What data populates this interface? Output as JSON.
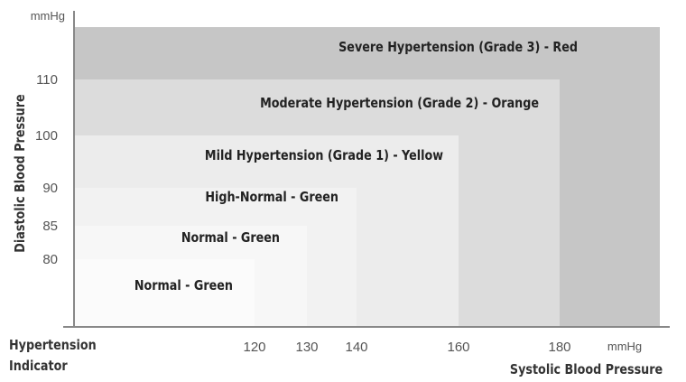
{
  "chart_data": {
    "type": "area",
    "title": "",
    "xlabel": "Systolic Blood Pressure",
    "ylabel": "Diastolic Blood Pressure",
    "x_unit": "mmHg",
    "y_unit": "mmHg",
    "x_ticks": [
      120,
      130,
      140,
      160,
      180
    ],
    "y_ticks": [
      80,
      85,
      90,
      100,
      110
    ],
    "corner_label": [
      "Hypertension",
      "Indicator"
    ],
    "zones": [
      {
        "label": "Severe Hypertension (Grade 3) - Red",
        "color": "#c6c6c6"
      },
      {
        "label": "Moderate Hypertension (Grade 2) - Orange",
        "color": "#dcdcdc",
        "systolic_max": 180,
        "diastolic_max": 110
      },
      {
        "label": "Mild Hypertension (Grade 1) - Yellow",
        "color": "#ececec",
        "systolic_max": 160,
        "diastolic_max": 100
      },
      {
        "label": "High-Normal - Green",
        "color": "#f2f2f2",
        "systolic_max": 140,
        "diastolic_max": 90
      },
      {
        "label": "Normal - Green",
        "color": "#f7f7f7",
        "systolic_max": 130,
        "diastolic_max": 85
      },
      {
        "label": "Normal - Green",
        "color": "#fbfbfb",
        "systolic_max": 120,
        "diastolic_max": 80
      }
    ],
    "colors": {
      "axis": "#888888",
      "tick_label": "#555555",
      "zone_label": "#222222"
    }
  }
}
